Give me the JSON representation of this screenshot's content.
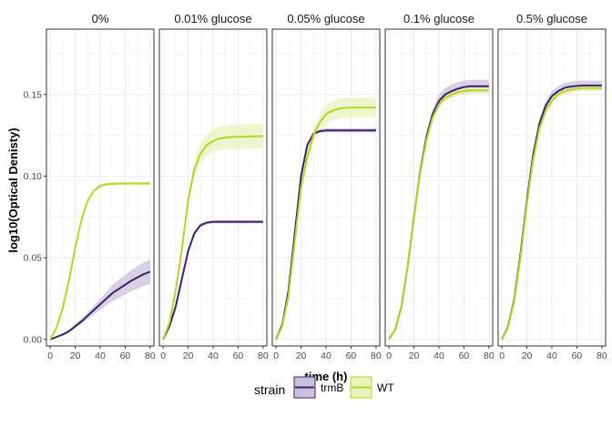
{
  "chart_data": {
    "type": "line",
    "xlabel": "time (h)",
    "ylabel": "log10(Optical Denisty)",
    "xlim": [
      -3,
      83
    ],
    "ylim": [
      -0.004,
      0.19
    ],
    "x_ticks": [
      0,
      20,
      40,
      60,
      80
    ],
    "x_tick_labels": [
      "0",
      "20",
      "40",
      "60",
      "80"
    ],
    "y_ticks": [
      0.0,
      0.05,
      0.1,
      0.15
    ],
    "y_tick_labels": [
      "0.00",
      "0.05",
      "0.10",
      "0.15"
    ],
    "grid": true,
    "legend": {
      "position": "bottom",
      "title": "strain",
      "entries": [
        {
          "label": "trmB",
          "color": "#3f1f6b",
          "fill": "#c9c1d9"
        },
        {
          "label": "WT",
          "color": "#b5d625",
          "fill": "#e8f3bd"
        }
      ]
    },
    "panels": [
      {
        "title": "0%",
        "series": [
          {
            "name": "trmB",
            "x": [
              0,
              5,
              10,
              15,
              20,
              25,
              30,
              35,
              40,
              45,
              50,
              55,
              60,
              65,
              70,
              75,
              80
            ],
            "y": [
              0,
              0.0015,
              0.003,
              0.005,
              0.008,
              0.011,
              0.0145,
              0.018,
              0.0215,
              0.025,
              0.0285,
              0.031,
              0.0335,
              0.036,
              0.038,
              0.04,
              0.0415
            ],
            "band": [
              0,
              0.0003,
              0.0005,
              0.0008,
              0.0012,
              0.0016,
              0.002,
              0.0028,
              0.0035,
              0.0042,
              0.005,
              0.0056,
              0.006,
              0.0065,
              0.007,
              0.0072,
              0.0075
            ]
          },
          {
            "name": "WT",
            "x": [
              0,
              5,
              10,
              15,
              20,
              25,
              30,
              35,
              40,
              45,
              50,
              55,
              60,
              65,
              70,
              75,
              80
            ],
            "y": [
              0,
              0.007,
              0.019,
              0.036,
              0.056,
              0.073,
              0.085,
              0.091,
              0.094,
              0.095,
              0.0953,
              0.0955,
              0.0955,
              0.0955,
              0.0955,
              0.0955,
              0.0955
            ],
            "band": [
              0,
              0.0005,
              0.0007,
              0.0009,
              0.001,
              0.001,
              0.001,
              0.001,
              0.001,
              0.001,
              0.001,
              0.001,
              0.001,
              0.001,
              0.001,
              0.001,
              0.001
            ]
          }
        ]
      },
      {
        "title": "0.01% glucose",
        "series": [
          {
            "name": "trmB",
            "x": [
              0,
              5,
              10,
              15,
              20,
              25,
              30,
              35,
              40,
              45,
              50,
              60,
              70,
              80
            ],
            "y": [
              0,
              0.008,
              0.02,
              0.037,
              0.054,
              0.065,
              0.07,
              0.0715,
              0.072,
              0.072,
              0.072,
              0.072,
              0.072,
              0.072
            ],
            "band": [
              0,
              0.0005,
              0.0008,
              0.001,
              0.001,
              0.001,
              0.001,
              0.001,
              0.001,
              0.001,
              0.001,
              0.001,
              0.001,
              0.001
            ]
          },
          {
            "name": "WT",
            "x": [
              0,
              5,
              10,
              15,
              20,
              25,
              30,
              35,
              40,
              45,
              50,
              55,
              60,
              70,
              80
            ],
            "y": [
              0,
              0.01,
              0.03,
              0.055,
              0.085,
              0.104,
              0.114,
              0.119,
              0.1215,
              0.123,
              0.1235,
              0.124,
              0.124,
              0.1243,
              0.1245
            ],
            "band": [
              0,
              0.001,
              0.002,
              0.003,
              0.004,
              0.005,
              0.006,
              0.0065,
              0.007,
              0.0072,
              0.0073,
              0.0074,
              0.0075,
              0.0075,
              0.0075
            ]
          }
        ]
      },
      {
        "title": "0.05% glucose",
        "series": [
          {
            "name": "trmB",
            "x": [
              0,
              5,
              10,
              15,
              20,
              25,
              30,
              35,
              40,
              45,
              50,
              60,
              70,
              80
            ],
            "y": [
              0,
              0.009,
              0.03,
              0.065,
              0.1,
              0.119,
              0.126,
              0.1275,
              0.128,
              0.128,
              0.128,
              0.128,
              0.128,
              0.128
            ],
            "band": [
              0,
              0.0006,
              0.001,
              0.0012,
              0.0012,
              0.0012,
              0.0012,
              0.0012,
              0.0012,
              0.0012,
              0.0012,
              0.0012,
              0.0012,
              0.0012
            ]
          },
          {
            "name": "WT",
            "x": [
              0,
              5,
              10,
              15,
              20,
              25,
              30,
              35,
              40,
              45,
              50,
              55,
              60,
              70,
              80
            ],
            "y": [
              0,
              0.008,
              0.027,
              0.06,
              0.093,
              0.112,
              0.125,
              0.133,
              0.138,
              0.14,
              0.1412,
              0.1418,
              0.142,
              0.142,
              0.142
            ],
            "band": [
              0,
              0.001,
              0.002,
              0.003,
              0.004,
              0.005,
              0.005,
              0.0055,
              0.006,
              0.006,
              0.006,
              0.006,
              0.006,
              0.006,
              0.006
            ]
          }
        ]
      },
      {
        "title": "0.1% glucose",
        "series": [
          {
            "name": "trmB",
            "x": [
              0,
              5,
              10,
              15,
              20,
              25,
              30,
              35,
              40,
              45,
              50,
              55,
              60,
              65,
              70,
              75,
              80
            ],
            "y": [
              0,
              0.006,
              0.02,
              0.045,
              0.075,
              0.103,
              0.124,
              0.138,
              0.146,
              0.15,
              0.152,
              0.1535,
              0.1545,
              0.155,
              0.155,
              0.155,
              0.155
            ],
            "band": [
              0,
              0.0005,
              0.001,
              0.0015,
              0.002,
              0.0025,
              0.003,
              0.0035,
              0.004,
              0.004,
              0.004,
              0.004,
              0.004,
              0.004,
              0.004,
              0.004,
              0.004
            ]
          },
          {
            "name": "WT",
            "x": [
              0,
              5,
              10,
              15,
              20,
              25,
              30,
              35,
              40,
              45,
              50,
              55,
              60,
              65,
              70,
              75,
              80
            ],
            "y": [
              0,
              0.006,
              0.02,
              0.045,
              0.075,
              0.102,
              0.122,
              0.136,
              0.144,
              0.148,
              0.15,
              0.1515,
              0.152,
              0.1525,
              0.1525,
              0.1525,
              0.1525
            ],
            "band": [
              0,
              0.0005,
              0.001,
              0.0015,
              0.0018,
              0.002,
              0.002,
              0.002,
              0.002,
              0.002,
              0.002,
              0.002,
              0.002,
              0.002,
              0.002,
              0.002,
              0.002
            ]
          }
        ]
      },
      {
        "title": "0.5% glucose",
        "series": [
          {
            "name": "trmB",
            "x": [
              0,
              5,
              10,
              15,
              20,
              25,
              30,
              35,
              40,
              45,
              50,
              55,
              60,
              65,
              70,
              75,
              80
            ],
            "y": [
              0,
              0.008,
              0.025,
              0.053,
              0.085,
              0.113,
              0.132,
              0.143,
              0.149,
              0.152,
              0.154,
              0.1548,
              0.1552,
              0.1555,
              0.1555,
              0.1555,
              0.1555
            ],
            "band": [
              0,
              0.0005,
              0.001,
              0.0015,
              0.002,
              0.0025,
              0.003,
              0.003,
              0.003,
              0.003,
              0.003,
              0.003,
              0.003,
              0.003,
              0.003,
              0.003,
              0.003
            ]
          },
          {
            "name": "WT",
            "x": [
              0,
              5,
              10,
              15,
              20,
              25,
              30,
              35,
              40,
              45,
              50,
              55,
              60,
              65,
              70,
              75,
              80
            ],
            "y": [
              0,
              0.0075,
              0.024,
              0.051,
              0.083,
              0.11,
              0.129,
              0.14,
              0.146,
              0.15,
              0.152,
              0.153,
              0.1535,
              0.154,
              0.154,
              0.154,
              0.154
            ],
            "band": [
              0,
              0.0005,
              0.001,
              0.0015,
              0.002,
              0.002,
              0.002,
              0.002,
              0.002,
              0.002,
              0.002,
              0.002,
              0.002,
              0.002,
              0.002,
              0.002,
              0.002
            ]
          }
        ]
      }
    ]
  }
}
